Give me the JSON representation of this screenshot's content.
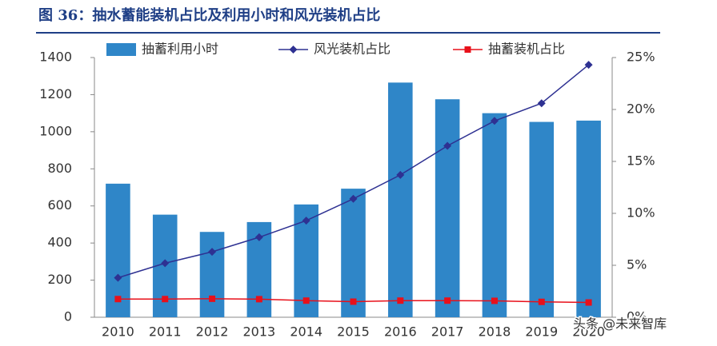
{
  "chart_data": {
    "type": "combo",
    "title": "图 36：抽水蓄能装机占比及利用小时和风光装机占比",
    "categories": [
      "2010",
      "2011",
      "2012",
      "2013",
      "2014",
      "2015",
      "2016",
      "2017",
      "2018",
      "2019",
      "2020"
    ],
    "series": [
      {
        "name": "抽蓄利用小时",
        "type": "bar",
        "color": "#2f86c8",
        "values": [
          720,
          553,
          460,
          513,
          608,
          693,
          1265,
          1175,
          1100,
          1053,
          1060
        ]
      },
      {
        "name": "风光装机占比",
        "type": "line",
        "marker": "diamond",
        "axis": "y2",
        "color": "#2e3192",
        "values": [
          3.8,
          5.2,
          6.3,
          7.7,
          9.3,
          11.4,
          13.7,
          16.5,
          18.9,
          20.6,
          24.3
        ]
      },
      {
        "name": "抽蓄装机占比",
        "type": "line",
        "marker": "square",
        "axis": "y2",
        "color": "#e8101a",
        "values": [
          1.75,
          1.75,
          1.78,
          1.74,
          1.6,
          1.5,
          1.6,
          1.6,
          1.58,
          1.48,
          1.42
        ]
      }
    ],
    "ylim": [
      0,
      1400
    ],
    "yticks": [
      0,
      200,
      400,
      600,
      800,
      1000,
      1200,
      1400
    ],
    "y2lim": [
      0,
      25
    ],
    "y2ticks": [
      {
        "value": 0,
        "label": "0%"
      },
      {
        "value": 5,
        "label": "5%"
      },
      {
        "value": 10,
        "label": "10%"
      },
      {
        "value": 15,
        "label": "15%"
      },
      {
        "value": 20,
        "label": "20%"
      },
      {
        "value": 25,
        "label": "25%"
      }
    ],
    "grid": false,
    "legend": "top",
    "watermark": "头条 @未来智库"
  }
}
